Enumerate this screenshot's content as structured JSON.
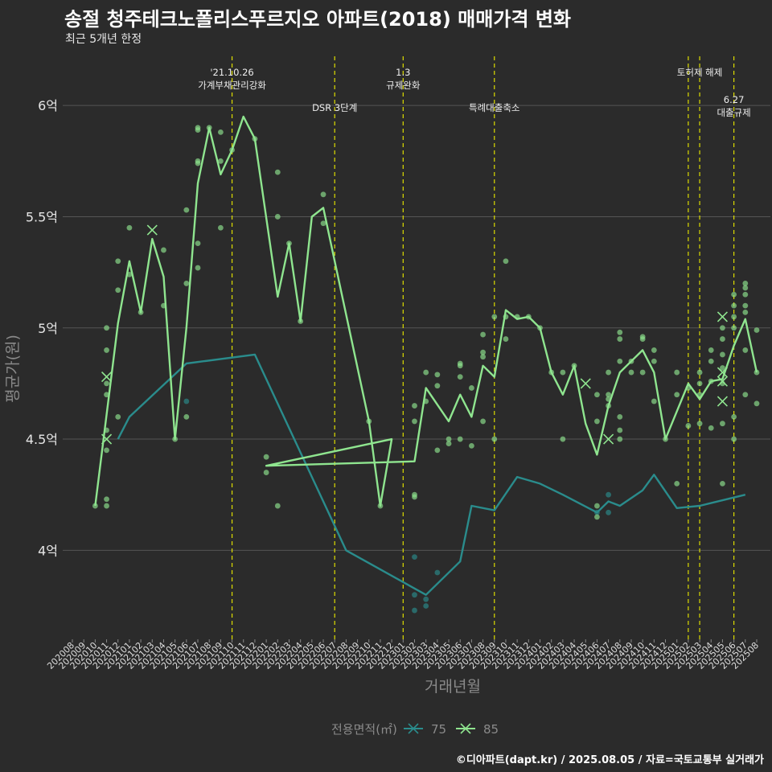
{
  "title": "송절 청주테크노폴리스푸르지오 아파트(2018) 매매가격 변화",
  "subtitle": "최근 5개년 한정",
  "caption": "©디아파트(dapt.kr) / 2025.08.05 / 자료=국토교통부 실거래가",
  "colors": {
    "background": "#2b2b2b",
    "grid": "#555555",
    "annotation": "#dddd00",
    "s75": "#2a8c8c",
    "s85": "#8fe58f"
  },
  "chart_data": {
    "type": "line",
    "xlabel": "거래년월",
    "ylabel": "평균가(원)",
    "x_categories": [
      "202008",
      "202009",
      "202010",
      "202011",
      "202012",
      "202101",
      "202102",
      "202103",
      "202104",
      "202105",
      "202106",
      "202107",
      "202108",
      "202109",
      "202110",
      "202111",
      "202112",
      "202201",
      "202202",
      "202203",
      "202204",
      "202205",
      "202206",
      "202207",
      "202208",
      "202209",
      "202210",
      "202211",
      "202212",
      "202301",
      "202302",
      "202303",
      "202304",
      "202305",
      "202306",
      "202307",
      "202308",
      "202309",
      "202310",
      "202311",
      "202312",
      "202401",
      "202402",
      "202403",
      "202404",
      "202405",
      "202406",
      "202407",
      "202408",
      "202409",
      "202410",
      "202411",
      "202412",
      "202501",
      "202502",
      "202503",
      "202504",
      "202505",
      "202506",
      "202507",
      "202508"
    ],
    "y_ticks": [
      {
        "value": 4.0,
        "label": "4억"
      },
      {
        "value": 4.5,
        "label": "4.5억"
      },
      {
        "value": 5.0,
        "label": "5억"
      },
      {
        "value": 5.5,
        "label": "5.5억"
      },
      {
        "value": 6.0,
        "label": "6억"
      }
    ],
    "y_unit": "억",
    "ylim": [
      3.6,
      6.25
    ],
    "grid": true,
    "legend": {
      "title": "전용면적(㎡)",
      "position": "bottom",
      "items": [
        "75",
        "85"
      ]
    },
    "annotations": [
      {
        "x": "202110",
        "lines": [
          "'21.10.26",
          "가계부채관리강화"
        ],
        "level": 1
      },
      {
        "x": "202207",
        "lines": [
          "DSR 3단계"
        ],
        "level": 2
      },
      {
        "x": "202301",
        "lines": [
          "1.3",
          "규제완화"
        ],
        "level": 1
      },
      {
        "x": "202309",
        "lines": [
          "특례대출축소"
        ],
        "level": 2
      },
      {
        "x": "202502",
        "lines": [],
        "level": 1
      },
      {
        "x": "202503",
        "lines": [
          "토허제 해제"
        ],
        "level": 1
      },
      {
        "x": "202506",
        "lines": [
          "6.27",
          "대출규제"
        ],
        "level": 3
      }
    ],
    "series": [
      {
        "name": "75",
        "line": [
          [
            "202012",
            4.5
          ],
          [
            "202101",
            4.6
          ],
          [
            "202106",
            4.84
          ],
          [
            "202112",
            4.88
          ],
          [
            "202208",
            4.0
          ],
          [
            "202303",
            3.8
          ],
          [
            "202306",
            3.95
          ],
          [
            "202307",
            4.2
          ],
          [
            "202309",
            4.18
          ],
          [
            "202311",
            4.33
          ],
          [
            "202401",
            4.3
          ],
          [
            "202403",
            4.25
          ],
          [
            "202406",
            4.17
          ],
          [
            "202407",
            4.22
          ],
          [
            "202408",
            4.2
          ],
          [
            "202410",
            4.27
          ],
          [
            "202411",
            4.34
          ],
          [
            "202501",
            4.19
          ],
          [
            "202503",
            4.2
          ],
          [
            "202507",
            4.25
          ]
        ],
        "points": [
          [
            "202106",
            4.67
          ],
          [
            "202302",
            3.97
          ],
          [
            "202302",
            3.8
          ],
          [
            "202302",
            3.73
          ],
          [
            "202303",
            3.78
          ],
          [
            "202303",
            3.75
          ],
          [
            "202304",
            3.9
          ],
          [
            "202406",
            4.17
          ],
          [
            "202407",
            4.25
          ],
          [
            "202407",
            4.17
          ]
        ],
        "crosses": []
      },
      {
        "name": "85",
        "line": [
          [
            "202010",
            4.2
          ],
          [
            "202012",
            5.02
          ],
          [
            "202101",
            5.3
          ],
          [
            "202102",
            5.07
          ],
          [
            "202103",
            5.4
          ],
          [
            "202104",
            5.23
          ],
          [
            "202105",
            4.5
          ],
          [
            "202106",
            5.0
          ],
          [
            "202107",
            5.65
          ],
          [
            "202108",
            5.9
          ],
          [
            "202109",
            5.69
          ],
          [
            "202110",
            5.8
          ],
          [
            "202111",
            5.95
          ],
          [
            "202112",
            5.85
          ],
          [
            "202202",
            5.14
          ],
          [
            "202203",
            5.38
          ],
          [
            "202204",
            5.03
          ],
          [
            "202205",
            5.5
          ],
          [
            "202206",
            5.54
          ],
          [
            "202210",
            4.58
          ],
          [
            "202211",
            4.2
          ],
          [
            "202212",
            4.5
          ],
          [
            "202201",
            4.38
          ],
          [
            "202302",
            4.4
          ],
          [
            "202303",
            4.73
          ],
          [
            "202305",
            4.58
          ],
          [
            "202306",
            4.7
          ],
          [
            "202307",
            4.6
          ],
          [
            "202308",
            4.83
          ],
          [
            "202309",
            4.78
          ],
          [
            "202310",
            5.08
          ],
          [
            "202311",
            5.04
          ],
          [
            "202312",
            5.05
          ],
          [
            "202401",
            5.0
          ],
          [
            "202402",
            4.8
          ],
          [
            "202403",
            4.7
          ],
          [
            "202404",
            4.83
          ],
          [
            "202405",
            4.57
          ],
          [
            "202406",
            4.43
          ],
          [
            "202407",
            4.65
          ],
          [
            "202408",
            4.8
          ],
          [
            "202409",
            4.85
          ],
          [
            "202410",
            4.9
          ],
          [
            "202411",
            4.8
          ],
          [
            "202412",
            4.5
          ],
          [
            "202502",
            4.75
          ],
          [
            "202503",
            4.68
          ],
          [
            "202504",
            4.76
          ],
          [
            "202505",
            4.77
          ],
          [
            "202506",
            4.92
          ],
          [
            "202507",
            5.04
          ],
          [
            "202508",
            4.8
          ]
        ],
        "points": [
          [
            "202010",
            4.2
          ],
          [
            "202011",
            4.23
          ],
          [
            "202011",
            4.2
          ],
          [
            "202011",
            4.45
          ],
          [
            "202011",
            4.54
          ],
          [
            "202011",
            4.7
          ],
          [
            "202011",
            4.75
          ],
          [
            "202011",
            4.9
          ],
          [
            "202011",
            5.0
          ],
          [
            "202012",
            4.6
          ],
          [
            "202012",
            5.17
          ],
          [
            "202012",
            5.3
          ],
          [
            "202101",
            5.45
          ],
          [
            "202101",
            5.24
          ],
          [
            "202102",
            5.07
          ],
          [
            "202104",
            5.35
          ],
          [
            "202104",
            5.1
          ],
          [
            "202105",
            4.5
          ],
          [
            "202106",
            5.2
          ],
          [
            "202106",
            5.53
          ],
          [
            "202106",
            4.6
          ],
          [
            "202107",
            5.75
          ],
          [
            "202107",
            5.74
          ],
          [
            "202107",
            5.38
          ],
          [
            "202107",
            5.27
          ],
          [
            "202107",
            5.89
          ],
          [
            "202107",
            5.9
          ],
          [
            "202108",
            5.9
          ],
          [
            "202109",
            5.88
          ],
          [
            "202109",
            5.75
          ],
          [
            "202109",
            5.45
          ],
          [
            "202110",
            5.8
          ],
          [
            "202112",
            5.85
          ],
          [
            "202202",
            4.2
          ],
          [
            "202202",
            5.5
          ],
          [
            "202202",
            5.7
          ],
          [
            "202203",
            5.38
          ],
          [
            "202204",
            5.03
          ],
          [
            "202206",
            5.6
          ],
          [
            "202206",
            5.47
          ],
          [
            "202210",
            4.58
          ],
          [
            "202211",
            4.2
          ],
          [
            "202201",
            4.42
          ],
          [
            "202201",
            4.35
          ],
          [
            "202302",
            4.25
          ],
          [
            "202302",
            4.24
          ],
          [
            "202302",
            4.58
          ],
          [
            "202302",
            4.65
          ],
          [
            "202303",
            4.8
          ],
          [
            "202303",
            4.67
          ],
          [
            "202304",
            4.45
          ],
          [
            "202304",
            4.74
          ],
          [
            "202304",
            4.79
          ],
          [
            "202305",
            4.5
          ],
          [
            "202305",
            4.48
          ],
          [
            "202306",
            4.5
          ],
          [
            "202306",
            4.84
          ],
          [
            "202306",
            4.83
          ],
          [
            "202306",
            4.78
          ],
          [
            "202307",
            4.47
          ],
          [
            "202307",
            4.73
          ],
          [
            "202308",
            4.58
          ],
          [
            "202308",
            4.87
          ],
          [
            "202308",
            4.89
          ],
          [
            "202308",
            4.97
          ],
          [
            "202309",
            4.5
          ],
          [
            "202309",
            5.05
          ],
          [
            "202310",
            4.95
          ],
          [
            "202310",
            5.05
          ],
          [
            "202310",
            5.3
          ],
          [
            "202311",
            5.05
          ],
          [
            "202312",
            5.05
          ],
          [
            "202401",
            5.0
          ],
          [
            "202402",
            4.8
          ],
          [
            "202403",
            4.8
          ],
          [
            "202403",
            4.5
          ],
          [
            "202404",
            4.83
          ],
          [
            "202406",
            4.7
          ],
          [
            "202406",
            4.58
          ],
          [
            "202406",
            4.2
          ],
          [
            "202406",
            4.15
          ],
          [
            "202407",
            4.65
          ],
          [
            "202407",
            4.68
          ],
          [
            "202407",
            4.7
          ],
          [
            "202407",
            4.8
          ],
          [
            "202408",
            4.5
          ],
          [
            "202408",
            4.54
          ],
          [
            "202408",
            4.6
          ],
          [
            "202408",
            4.85
          ],
          [
            "202408",
            4.95
          ],
          [
            "202408",
            4.98
          ],
          [
            "202409",
            4.8
          ],
          [
            "202409",
            4.85
          ],
          [
            "202410",
            4.95
          ],
          [
            "202410",
            4.96
          ],
          [
            "202410",
            4.8
          ],
          [
            "202411",
            4.85
          ],
          [
            "202411",
            4.9
          ],
          [
            "202411",
            4.67
          ],
          [
            "202412",
            4.5
          ],
          [
            "202501",
            4.8
          ],
          [
            "202501",
            4.7
          ],
          [
            "202501",
            4.3
          ],
          [
            "202502",
            4.73
          ],
          [
            "202502",
            4.56
          ],
          [
            "202503",
            4.8
          ],
          [
            "202503",
            4.57
          ],
          [
            "202503",
            4.75
          ],
          [
            "202503",
            4.7
          ],
          [
            "202504",
            4.76
          ],
          [
            "202504",
            4.85
          ],
          [
            "202504",
            4.9
          ],
          [
            "202504",
            4.55
          ],
          [
            "202505",
            4.3
          ],
          [
            "202505",
            4.57
          ],
          [
            "202505",
            4.95
          ],
          [
            "202505",
            5.0
          ],
          [
            "202505",
            4.75
          ],
          [
            "202505",
            4.88
          ],
          [
            "202505",
            4.82
          ],
          [
            "202506",
            4.5
          ],
          [
            "202506",
            4.6
          ],
          [
            "202506",
            5.1
          ],
          [
            "202506",
            5.15
          ],
          [
            "202506",
            5.0
          ],
          [
            "202506",
            5.05
          ],
          [
            "202507",
            5.2
          ],
          [
            "202507",
            5.18
          ],
          [
            "202507",
            5.15
          ],
          [
            "202507",
            5.1
          ],
          [
            "202507",
            5.07
          ],
          [
            "202507",
            4.9
          ],
          [
            "202507",
            4.7
          ],
          [
            "202508",
            4.99
          ],
          [
            "202508",
            4.66
          ],
          [
            "202508",
            4.8
          ]
        ],
        "crosses": [
          [
            "202011",
            4.78
          ],
          [
            "202011",
            4.5
          ],
          [
            "202103",
            5.44
          ],
          [
            "202405",
            4.75
          ],
          [
            "202407",
            4.5
          ],
          [
            "202505",
            5.05
          ],
          [
            "202505",
            4.8
          ],
          [
            "202505",
            4.76
          ],
          [
            "202505",
            4.67
          ]
        ]
      }
    ]
  }
}
